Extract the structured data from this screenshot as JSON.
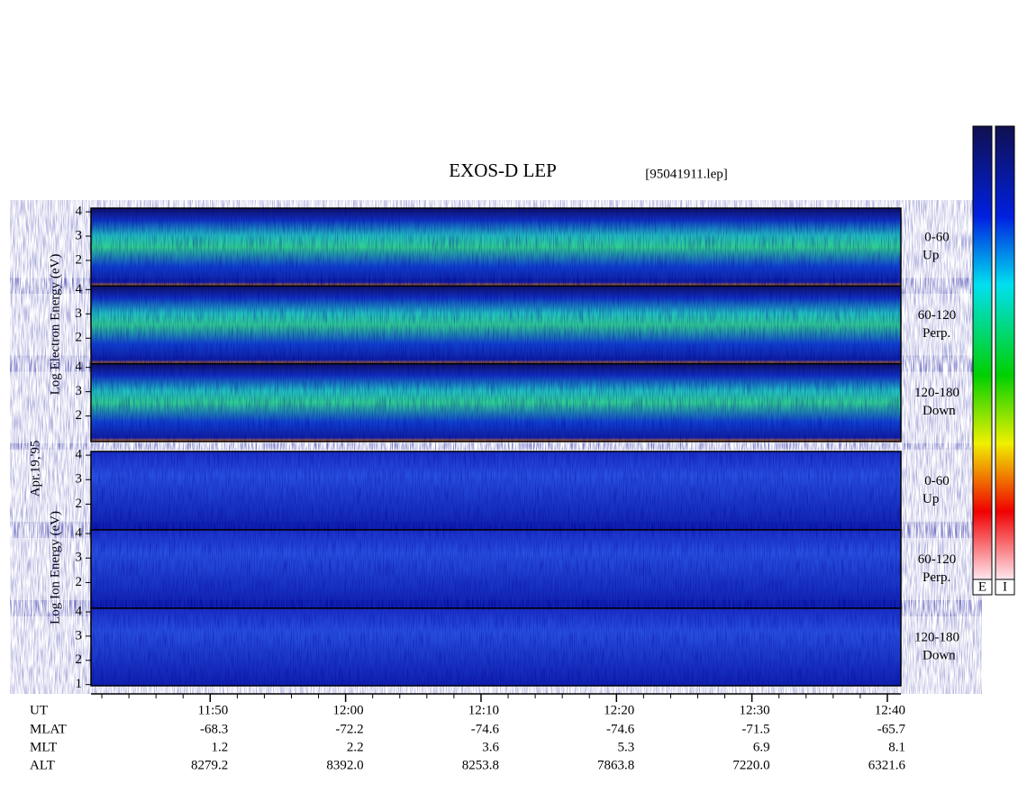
{
  "title": "EXOS-D LEP",
  "file": "[95041911.lep]",
  "date": "Apr.19,'95",
  "electron_axis_label": "Log Electron Energy (eV)",
  "ion_axis_label": "Log Ion Energy (eV)",
  "ylim": [
    0.95,
    4.15
  ],
  "panels": [
    {
      "angle": "0-60",
      "direction": "Up",
      "yticks": [
        4,
        3,
        2
      ]
    },
    {
      "angle": "60-120",
      "direction": "Perp.",
      "yticks": [
        4,
        3,
        2
      ]
    },
    {
      "angle": "120-180",
      "direction": "Down",
      "yticks": [
        4,
        3,
        2
      ]
    },
    {
      "angle": "0-60",
      "direction": "Up",
      "yticks": [
        4,
        3,
        2
      ]
    },
    {
      "angle": "60-120",
      "direction": "Perp.",
      "yticks": [
        4,
        3,
        2
      ]
    },
    {
      "angle": "120-180",
      "direction": "Down",
      "yticks": [
        4,
        3,
        2,
        1
      ]
    }
  ],
  "time_axis": {
    "xlim": [
      701.2,
      761.0
    ],
    "xticks": [
      {
        "value": 710,
        "label": "11:50"
      },
      {
        "value": 720,
        "label": "12:00"
      },
      {
        "value": 730,
        "label": "12:10"
      },
      {
        "value": 740,
        "label": "12:20"
      },
      {
        "value": 750,
        "label": "12:30"
      },
      {
        "value": 760,
        "label": "12:40"
      }
    ],
    "minor_xticks": [
      702,
      704,
      706,
      708,
      712,
      714,
      716,
      718,
      722,
      724,
      726,
      728,
      732,
      734,
      736,
      738,
      742,
      744,
      746,
      748,
      752,
      754,
      756,
      758
    ]
  },
  "ephemeris": {
    "labels": [
      "UT",
      "MLAT",
      "MLT",
      "ALT"
    ],
    "rows": [
      [
        "-68.3",
        "-72.2",
        "-74.6",
        "-74.6",
        "-71.5",
        "-65.7"
      ],
      [
        "1.2",
        "2.2",
        "3.6",
        "5.3",
        "6.9",
        "8.1"
      ],
      [
        "8279.2",
        "8392.0",
        "8253.8",
        "7863.8",
        "7220.0",
        "6321.6"
      ]
    ]
  },
  "colorbars": [
    "E",
    "I"
  ]
}
